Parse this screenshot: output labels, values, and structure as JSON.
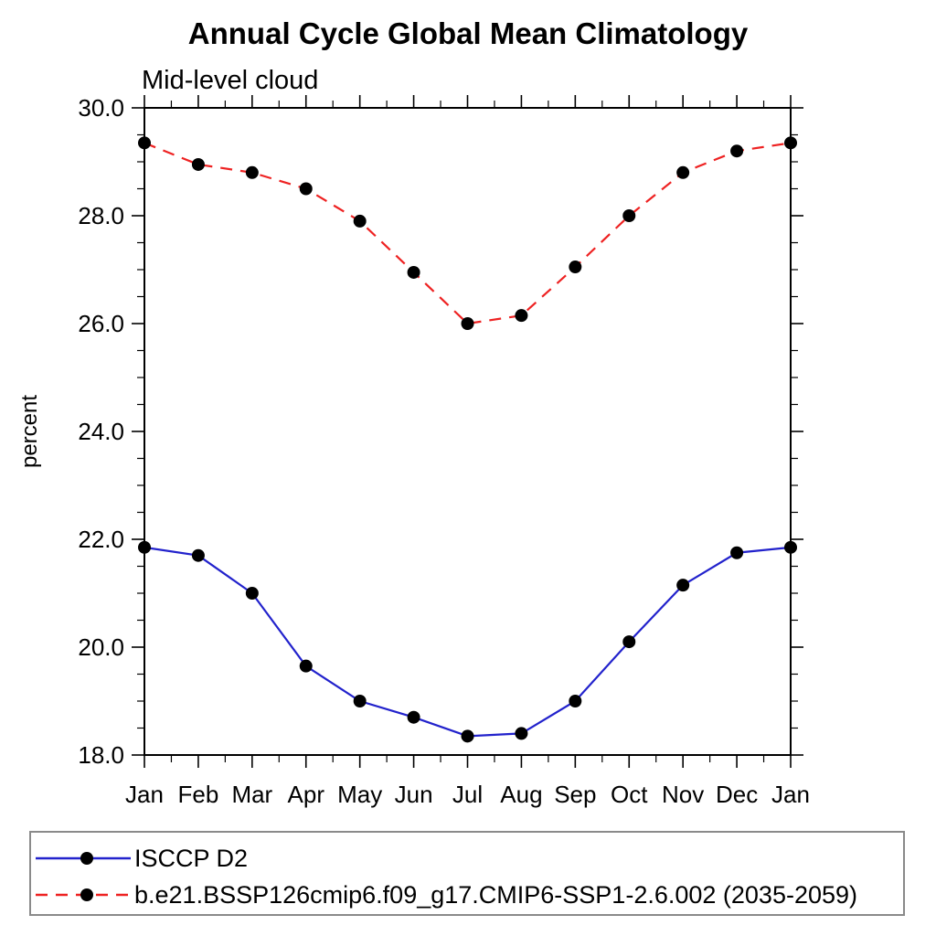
{
  "page": {
    "background": "#ffffff"
  },
  "header": {
    "title": "Annual Cycle Global Mean Climatology",
    "subtitle": "Mid-level cloud"
  },
  "chart_data": {
    "type": "line",
    "title": "Annual Cycle Global Mean Climatology",
    "subtitle": "Mid-level cloud",
    "xlabel": "",
    "ylabel": "percent",
    "categories": [
      "Jan",
      "Feb",
      "Mar",
      "Apr",
      "May",
      "Jun",
      "Jul",
      "Aug",
      "Sep",
      "Oct",
      "Nov",
      "Dec",
      "Jan"
    ],
    "ylim": [
      18.0,
      30.0
    ],
    "y_major_ticks": [
      30.0,
      28.0,
      26.0,
      24.0,
      22.0,
      20.0,
      18.0
    ],
    "y_major_tick_labels": [
      "30.0",
      "28.0",
      "26.0",
      "24.0",
      "22.0",
      "20.0",
      "18.0"
    ],
    "y_minor_step": 0.5,
    "x_minor_between_months": true,
    "grid": false,
    "legend_position": "bottom-left",
    "axis_color": "#000000",
    "marker": {
      "shape": "circle",
      "color": "#000000",
      "radius": 7
    },
    "series": [
      {
        "name": "ISCCP D2",
        "color": "#2222cc",
        "line_style": "solid",
        "values": [
          21.85,
          21.7,
          21.0,
          19.65,
          19.0,
          18.7,
          18.35,
          18.4,
          19.0,
          20.1,
          21.15,
          21.75,
          21.85
        ]
      },
      {
        "name": "b.e21.BSSP126cmip6.f09_g17.CMIP6-SSP1-2.6.002 (2035-2059)",
        "color": "#ee2222",
        "line_style": "dashed",
        "values": [
          29.35,
          28.95,
          28.8,
          28.5,
          27.9,
          26.95,
          26.0,
          26.15,
          27.05,
          28.0,
          28.8,
          29.2,
          29.35
        ]
      }
    ]
  },
  "legend": {
    "items": [
      {
        "label": "ISCCP D2"
      },
      {
        "label": "b.e21.BSSP126cmip6.f09_g17.CMIP6-SSP1-2.6.002 (2035-2059)"
      }
    ]
  }
}
